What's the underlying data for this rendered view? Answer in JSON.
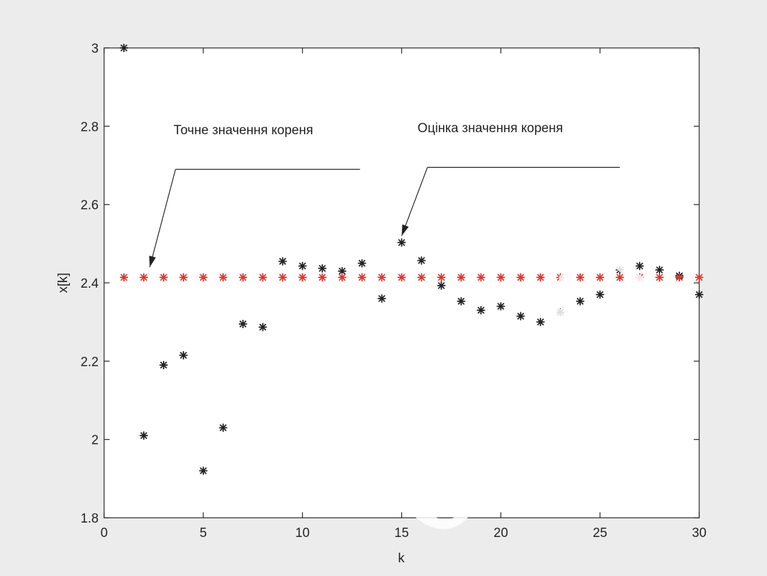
{
  "chart_data": {
    "type": "scatter",
    "xlabel": "k",
    "ylabel": "x[k]",
    "xlim": [
      0,
      30
    ],
    "ylim": [
      1.8,
      3.0
    ],
    "xticks": [
      0,
      5,
      10,
      15,
      20,
      25,
      30
    ],
    "yticks": [
      1.8,
      2,
      2.2,
      2.4,
      2.6,
      2.8,
      3
    ],
    "ytick_labels": [
      "1.8",
      "2",
      "2.2",
      "2.4",
      "2.6",
      "2.8",
      "3"
    ],
    "grid": false,
    "series": [
      {
        "marker": "*",
        "color": "#222222",
        "x": [
          1,
          2,
          3,
          4,
          5,
          6,
          7,
          8,
          9,
          10,
          11,
          12,
          13,
          14,
          15,
          16,
          17,
          18,
          19,
          20,
          21,
          22,
          23,
          24,
          25,
          26,
          27,
          28,
          29,
          30
        ],
        "y": [
          3.0,
          2.01,
          2.19,
          2.215,
          1.92,
          2.03,
          2.295,
          2.287,
          2.455,
          2.443,
          2.437,
          2.43,
          2.45,
          2.36,
          2.503,
          2.457,
          2.393,
          2.353,
          2.33,
          2.34,
          2.315,
          2.3,
          2.325,
          2.353,
          2.37,
          2.433,
          2.443,
          2.433,
          2.418,
          2.37
        ]
      },
      {
        "marker": "*",
        "color": "#e8322a",
        "x": [
          1,
          2,
          3,
          4,
          5,
          6,
          7,
          8,
          9,
          10,
          11,
          12,
          13,
          14,
          15,
          16,
          17,
          18,
          19,
          20,
          21,
          22,
          23,
          24,
          25,
          26,
          27,
          28,
          29,
          30
        ],
        "y": [
          2.414,
          2.414,
          2.414,
          2.414,
          2.414,
          2.414,
          2.414,
          2.414,
          2.414,
          2.414,
          2.414,
          2.414,
          2.414,
          2.414,
          2.414,
          2.414,
          2.414,
          2.414,
          2.414,
          2.414,
          2.414,
          2.414,
          2.414,
          2.414,
          2.414,
          2.414,
          2.414,
          2.414,
          2.414,
          2.414
        ]
      }
    ],
    "annotations": [
      {
        "text": "Точне значення кореня",
        "text_x": 3.5,
        "text_y": 2.78,
        "line_from_x": 3.6,
        "line_to_x": 12.9,
        "line_y": 2.69,
        "arrow_to_x": 2.3,
        "arrow_to_y": 2.44
      },
      {
        "text": "Оцінка значення кореня",
        "text_x": 15.8,
        "text_y": 2.785,
        "line_from_x": 16.3,
        "line_to_x": 26.0,
        "line_y": 2.695,
        "arrow_to_x": 15.0,
        "arrow_to_y": 2.52
      }
    ]
  },
  "watermark": "ОНАХТ"
}
